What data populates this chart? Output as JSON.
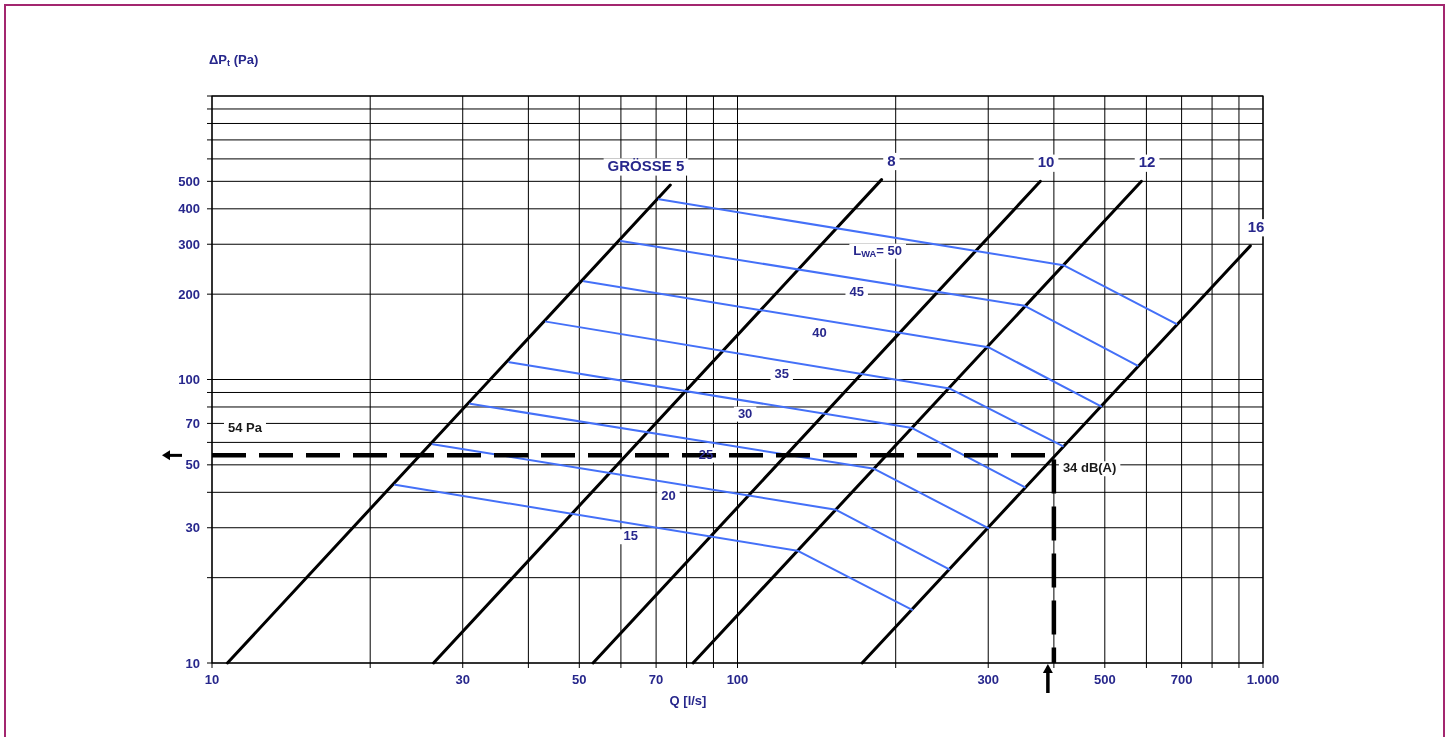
{
  "chart_data": {
    "type": "line",
    "log": "xy",
    "xlabel": "Q [l/s]",
    "ylabel": "ΔP$_{t}$ (Pa)",
    "xlim": [
      10,
      1000
    ],
    "ylim": [
      10,
      1000
    ],
    "xticks": [
      10,
      {
        "value": 20,
        "label": null
      },
      30,
      {
        "value": 40,
        "label": null
      },
      50,
      {
        "value": 60,
        "label": null
      },
      70,
      {
        "value": 80,
        "label": null
      },
      {
        "value": 90,
        "label": null
      },
      100,
      {
        "value": 200,
        "label": null
      },
      300,
      {
        "value": 400,
        "label": null
      },
      500,
      {
        "value": 600,
        "label": null
      },
      700,
      {
        "value": 800,
        "label": null
      },
      {
        "value": 900,
        "label": null
      },
      {
        "value": 1000,
        "label": "1.000"
      }
    ],
    "yticks": [
      10,
      {
        "value": 20,
        "label": null
      },
      30,
      {
        "value": 40,
        "label": null
      },
      50,
      {
        "value": 60,
        "label": null
      },
      70,
      {
        "value": 80,
        "label": null
      },
      {
        "value": 90,
        "label": null
      },
      100,
      200,
      300,
      400,
      500,
      {
        "value": 600,
        "label": null
      },
      {
        "value": 700,
        "label": null
      },
      {
        "value": 800,
        "label": null
      },
      {
        "value": 900,
        "label": null
      },
      {
        "value": 1000,
        "label": null
      }
    ],
    "grid": true,
    "series": [
      {
        "name": "GRÖSSE 5",
        "color": "#000000",
        "x": [
          10.7,
          74.5
        ],
        "values": [
          10,
          485
        ]
      },
      {
        "name": "8",
        "color": "#000000",
        "x": [
          26.4,
          188
        ],
        "values": [
          10,
          507
        ]
      },
      {
        "name": "10",
        "color": "#000000",
        "x": [
          53.1,
          377
        ],
        "values": [
          10,
          500
        ]
      },
      {
        "name": "12",
        "color": "#000000",
        "x": [
          82.3,
          587
        ],
        "values": [
          10,
          500
        ]
      },
      {
        "name": "16",
        "color": "#000000",
        "x": [
          172.6,
          946
        ],
        "values": [
          10,
          296
        ]
      },
      {
        "name": "L$_{WA}$= 50",
        "color": "#4470f8",
        "x": [
          70.9,
          417,
          684
        ],
        "values": [
          432,
          253,
          157
        ]
      },
      {
        "name": "45",
        "color": "#4470f8",
        "x": [
          60.0,
          352,
          577
        ],
        "values": [
          308,
          182,
          112
        ]
      },
      {
        "name": "40",
        "color": "#4470f8",
        "x": [
          51.0,
          300,
          492
        ],
        "values": [
          222,
          130,
          80.4
        ]
      },
      {
        "name": "35",
        "color": "#4470f8",
        "x": [
          43.2,
          253,
          416
        ],
        "values": [
          160,
          93,
          58.2
        ]
      },
      {
        "name": "30",
        "color": "#4470f8",
        "x": [
          36.8,
          215,
          352
        ],
        "values": [
          115,
          67.4,
          41.7
        ]
      },
      {
        "name": "25",
        "color": "#4470f8",
        "x": [
          31.0,
          182,
          300
        ],
        "values": [
          82.1,
          48.4,
          29.9
        ]
      },
      {
        "name": "20",
        "color": "#4470f8",
        "x": [
          26.3,
          154,
          253
        ],
        "values": [
          59.1,
          34.7,
          21.4
        ]
      },
      {
        "name": "15",
        "color": "#4470f8",
        "x": [
          22.3,
          130,
          215
        ],
        "values": [
          42.5,
          24.9,
          15.4
        ]
      },
      {
        "color": "#000000",
        "line_style": "dashed",
        "x": [
          10,
          400,
          400
        ],
        "values": [
          54,
          54,
          10
        ]
      }
    ],
    "annotations": [
      {
        "text": "54 Pa",
        "x": 10,
        "y": 54
      },
      {
        "text": "34 dB(A)",
        "x": 400,
        "y": 54
      }
    ]
  }
}
